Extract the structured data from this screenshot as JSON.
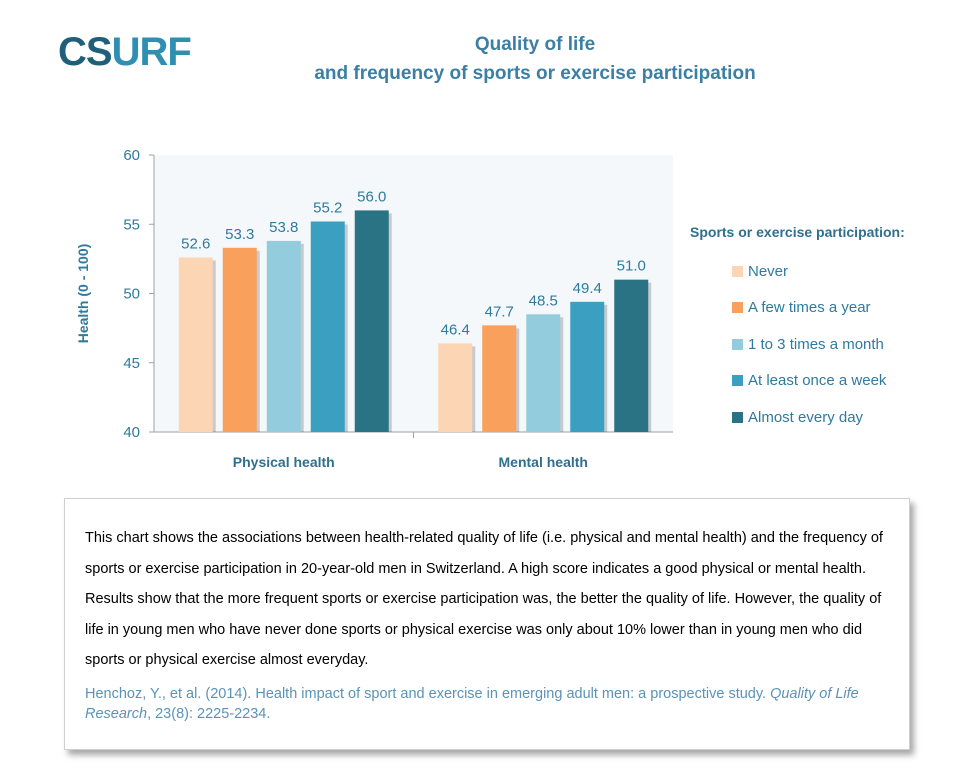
{
  "logo": {
    "part1": "CS",
    "part2": "URF"
  },
  "title": {
    "line1": "Quality of life",
    "line2": "and frequency of sports or exercise participation"
  },
  "chart_data": {
    "type": "bar",
    "categories": [
      "Physical health",
      "Mental health"
    ],
    "series": [
      {
        "name": "Never",
        "values": [
          52.6,
          46.4
        ],
        "color": "#fcd5b4"
      },
      {
        "name": "A few times a year",
        "values": [
          53.3,
          47.7
        ],
        "color": "#f9a05c"
      },
      {
        "name": "1 to 3 times a month",
        "values": [
          53.8,
          48.5
        ],
        "color": "#93cddd"
      },
      {
        "name": "At least once a week",
        "values": [
          55.2,
          49.4
        ],
        "color": "#3a9fc1"
      },
      {
        "name": "Almost every day",
        "values": [
          56.0,
          51.0
        ],
        "color": "#2a7385"
      }
    ],
    "ylabel": "Health  (0 - 100)",
    "ylim": [
      40,
      60
    ],
    "yticks": [
      40,
      45,
      50,
      55,
      60
    ],
    "legend_title": "Sports or exercise participation:",
    "legend_position": "right",
    "grid": false,
    "colors": {
      "axis": "#a0a0a0",
      "plot_bg": "#f5f8fb",
      "label": "#2f7a9d",
      "category": "#2f6f8f"
    }
  },
  "description": "This chart shows the associations between health-related quality of life (i.e. physical and mental health) and the frequency of sports or exercise participation in 20-year-old men in Switzerland. A high score indicates a good physical or mental health. Results show that the more frequent sports or exercise participation was, the better the quality of life. However, the quality of life in young men who have never done sports or physical exercise  was only about 10% lower than in young men who did sports or physical exercise almost everyday.",
  "citation": {
    "authors": "Henchoz, Y., et al. (2014). Health impact of sport and exercise in emerging adult men: a prospective study. ",
    "journal": "Quality of Life Research",
    "details": ", 23(8): 2225-2234."
  }
}
